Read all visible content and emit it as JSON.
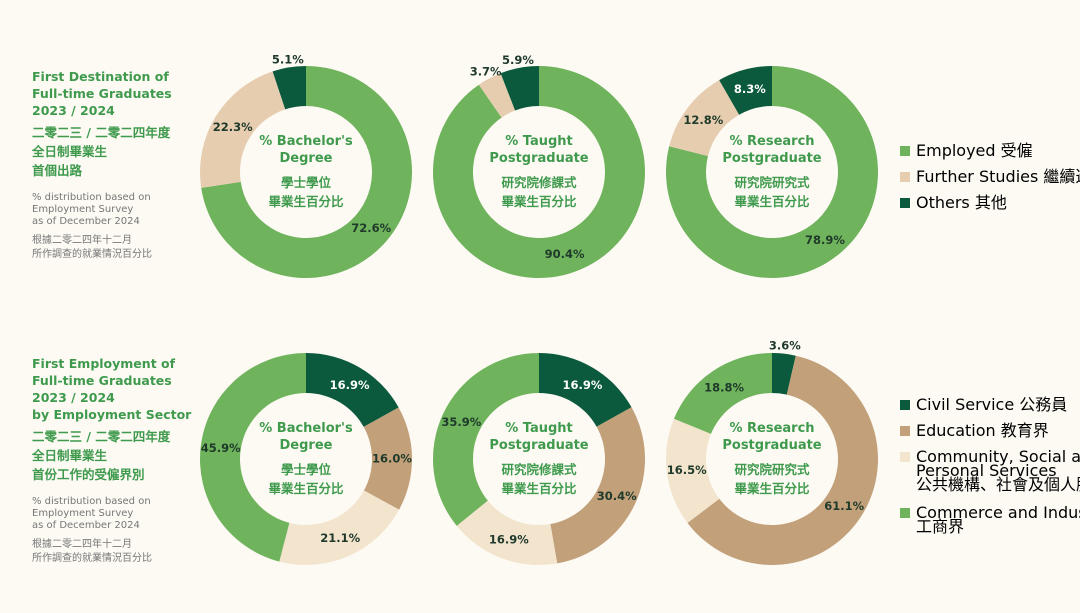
{
  "sections": [
    {
      "title_en": [
        "First Destination of",
        "Full-time Graduates",
        "2023 / 2024"
      ],
      "title_zh": [
        "二零二三 / 二零二四年度",
        "全日制畢業生",
        "首個出路"
      ],
      "note_en": [
        "% distribution based on",
        "Employment Survey",
        "as of December 2024"
      ],
      "note_zh": [
        "根據二零二四年十二月",
        "所作調查的就業情況百分比"
      ]
    },
    {
      "title_en": [
        "First Employment of",
        "Full-time Graduates",
        "2023 / 2024",
        "by Employment Sector"
      ],
      "title_zh": [
        "二零二三 / 二零二四年度",
        "全日制畢業生",
        "首份工作的受僱界別"
      ],
      "note_en": [
        "% distribution based on",
        "Employment Survey",
        "as of December 2024"
      ],
      "note_zh": [
        "根據二零二四年十二月",
        "所作調查的就業情況百分比"
      ]
    }
  ],
  "legends": [
    [
      {
        "label": "Employed 受僱",
        "color": "#6fb35d"
      },
      {
        "label": "Further Studies 繼續進修",
        "color": "#e6cdb0"
      },
      {
        "label": "Others 其他",
        "color": "#0b5a3d"
      }
    ],
    [
      {
        "label": "Civil Service 公務員",
        "color": "#0b5a3d"
      },
      {
        "label": "Education 教育界",
        "color": "#c2a07a"
      },
      {
        "label": "Community, Social and\nPersonal Services\n公共機構、社會及個人服務",
        "color": "#f3e4ce"
      },
      {
        "label": "Commerce and Industry\n工商界",
        "color": "#6fb35d"
      }
    ]
  ],
  "chart_data": [
    {
      "type": "pie",
      "center_label_en": [
        "% Bachelor's",
        "Degree"
      ],
      "center_label_zh": [
        "學士學位",
        "畢業生百分比"
      ],
      "slices": [
        {
          "name": "Employed 受僱",
          "value": 72.6,
          "color": "#6fb35d"
        },
        {
          "name": "Further Studies 繼續進修",
          "value": 22.3,
          "color": "#e6cdb0"
        },
        {
          "name": "Others 其他",
          "value": 5.1,
          "color": "#0b5a3d"
        }
      ]
    },
    {
      "type": "pie",
      "center_label_en": [
        "% Taught",
        "Postgraduate"
      ],
      "center_label_zh": [
        "研究院修課式",
        "畢業生百分比"
      ],
      "slices": [
        {
          "name": "Employed 受僱",
          "value": 90.4,
          "color": "#6fb35d"
        },
        {
          "name": "Further Studies 繼續進修",
          "value": 3.7,
          "color": "#e6cdb0"
        },
        {
          "name": "Others 其他",
          "value": 5.9,
          "color": "#0b5a3d"
        }
      ]
    },
    {
      "type": "pie",
      "center_label_en": [
        "% Research",
        "Postgraduate"
      ],
      "center_label_zh": [
        "研究院研究式",
        "畢業生百分比"
      ],
      "slices": [
        {
          "name": "Employed 受僱",
          "value": 78.9,
          "color": "#6fb35d"
        },
        {
          "name": "Further Studies 繼續進修",
          "value": 12.8,
          "color": "#e6cdb0"
        },
        {
          "name": "Others 其他",
          "value": 8.3,
          "color": "#0b5a3d"
        }
      ]
    },
    {
      "type": "pie",
      "center_label_en": [
        "% Bachelor's",
        "Degree"
      ],
      "center_label_zh": [
        "學士學位",
        "畢業生百分比"
      ],
      "slices": [
        {
          "name": "Civil Service 公務員",
          "value": 16.9,
          "color": "#0b5a3d"
        },
        {
          "name": "Education 教育界",
          "value": 16.0,
          "color": "#c2a07a"
        },
        {
          "name": "Community, Social and Personal Services",
          "value": 21.1,
          "color": "#f3e4ce"
        },
        {
          "name": "Commerce and Industry 工商界",
          "value": 45.9,
          "color": "#6fb35d"
        }
      ]
    },
    {
      "type": "pie",
      "center_label_en": [
        "% Taught",
        "Postgraduate"
      ],
      "center_label_zh": [
        "研究院修課式",
        "畢業生百分比"
      ],
      "slices": [
        {
          "name": "Civil Service 公務員",
          "value": 16.9,
          "color": "#0b5a3d"
        },
        {
          "name": "Education 教育界",
          "value": 30.4,
          "color": "#c2a07a"
        },
        {
          "name": "Community, Social and Personal Services",
          "value": 16.9,
          "color": "#f3e4ce"
        },
        {
          "name": "Commerce and Industry 工商界",
          "value": 35.9,
          "color": "#6fb35d"
        }
      ]
    },
    {
      "type": "pie",
      "center_label_en": [
        "% Research",
        "Postgraduate"
      ],
      "center_label_zh": [
        "研究院研究式",
        "畢業生百分比"
      ],
      "slices": [
        {
          "name": "Civil Service 公務員",
          "value": 3.6,
          "color": "#0b5a3d"
        },
        {
          "name": "Education 教育界",
          "value": 61.1,
          "color": "#c2a07a"
        },
        {
          "name": "Community, Social and Personal Services",
          "value": 16.5,
          "color": "#f3e4ce"
        },
        {
          "name": "Commerce and Industry 工商界",
          "value": 18.8,
          "color": "#6fb35d"
        }
      ]
    }
  ]
}
